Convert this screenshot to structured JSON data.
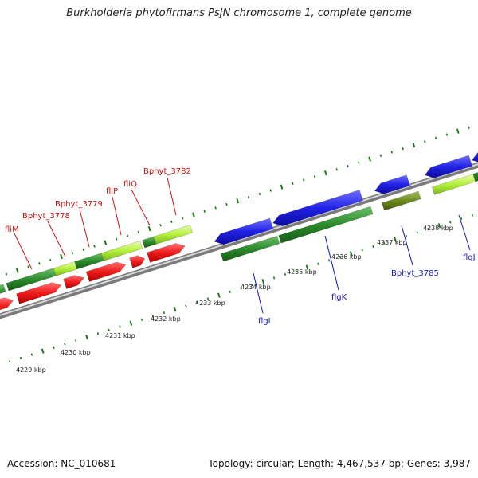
{
  "title": "Burkholderia phytofirmans PsJN chromosome 1, complete genome",
  "accession_text": "Accession: NC_010681",
  "summary_text": "Topology: circular; Length: 4,467,537 bp; Genes: 3,987",
  "colors": {
    "backbone": "#9a9a9a",
    "ticks": "#1a7a1a",
    "forward_cds": "#e8161a",
    "reverse_cds": "#1f22e0",
    "gene_green": "#2c8a2c",
    "gene_lightgreen": "#b4f03c",
    "gene_olive": "#6b8a1e",
    "forward_label": "#cc1111",
    "reverse_label": "#1515bb"
  },
  "ruler": {
    "labels": [
      "4229 kbp",
      "4230 kbp",
      "4231 kbp",
      "4232 kbp",
      "4233 kbp",
      "4234 kbp",
      "4235 kbp",
      "4236 kbp",
      "4237 kbp",
      "4238 kbp"
    ]
  },
  "forward_labels": [
    "fliM",
    "Bphyt_3778",
    "Bphyt_3779",
    "fliP",
    "fliQ",
    "Bphyt_3782"
  ],
  "reverse_labels": [
    "flgL",
    "flgK",
    "Bphyt_3785",
    "flgJ"
  ]
}
